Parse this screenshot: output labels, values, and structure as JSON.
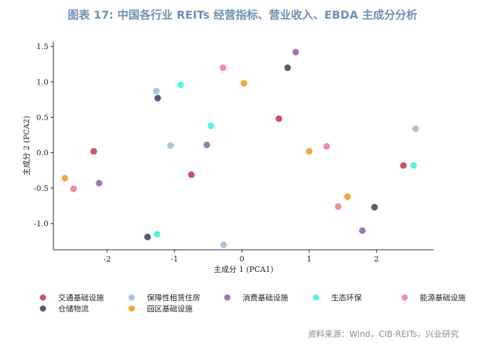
{
  "title": "图表 17: 中国各行业 REITs 经营指标、营业收入、EBDA 主成分分析",
  "source": "资料来源：Wind，CIB-REITs，兴业研究",
  "chart_data": {
    "type": "scatter",
    "xlabel": "主成分 1 (PCA1)",
    "ylabel": "主成分 2 (PCA2)",
    "xlim": [
      -2.8,
      2.85
    ],
    "ylim": [
      -1.37,
      1.57
    ],
    "xticks": [
      -2,
      -1,
      0,
      1,
      2
    ],
    "yticks": [
      -1.0,
      -0.5,
      0.0,
      0.5,
      1.0,
      1.5
    ],
    "xtick_labels": [
      "-2",
      "-1",
      "0",
      "1",
      "2"
    ],
    "ytick_labels": [
      "-1.0",
      "-0.5",
      "0.0",
      "0.5",
      "1.0",
      "1.5"
    ],
    "legend_position": "bottom",
    "series": [
      {
        "name": "交通基础设施",
        "color": "#c85764",
        "points": [
          [
            -2.2,
            0.02
          ],
          [
            -0.75,
            -0.31
          ],
          [
            0.55,
            0.48
          ],
          [
            2.4,
            -0.18
          ]
        ]
      },
      {
        "name": "保障性租赁住房",
        "color": "#a9c4de",
        "points": [
          [
            -1.27,
            0.87
          ],
          [
            -1.06,
            0.1
          ],
          [
            -0.27,
            -1.3
          ],
          [
            2.58,
            0.34
          ]
        ]
      },
      {
        "name": "消费基础设施",
        "color": "#9b77b8",
        "points": [
          [
            -2.12,
            -0.43
          ],
          [
            -0.52,
            0.11
          ],
          [
            0.8,
            1.42
          ],
          [
            1.79,
            -1.1
          ]
        ]
      },
      {
        "name": "生态环保",
        "color": "#5af1e1",
        "points": [
          [
            -1.26,
            -1.15
          ],
          [
            -0.91,
            0.96
          ],
          [
            -0.46,
            0.38
          ],
          [
            2.55,
            -0.18
          ]
        ]
      },
      {
        "name": "能源基础设施",
        "color": "#ef8e9d",
        "points": [
          [
            -2.5,
            -0.51
          ],
          [
            -0.28,
            1.2
          ],
          [
            1.26,
            0.09
          ],
          [
            1.43,
            -0.76
          ]
        ]
      },
      {
        "name": "仓储物流",
        "color": "#535d72",
        "points": [
          [
            -1.4,
            -1.19
          ],
          [
            -1.25,
            0.77
          ],
          [
            0.68,
            1.2
          ],
          [
            1.97,
            -0.77
          ]
        ]
      },
      {
        "name": "园区基础设施",
        "color": "#f0a840",
        "points": [
          [
            -2.63,
            -0.36
          ],
          [
            0.03,
            0.98
          ],
          [
            1.0,
            0.02
          ],
          [
            1.57,
            -0.62
          ]
        ]
      }
    ]
  }
}
